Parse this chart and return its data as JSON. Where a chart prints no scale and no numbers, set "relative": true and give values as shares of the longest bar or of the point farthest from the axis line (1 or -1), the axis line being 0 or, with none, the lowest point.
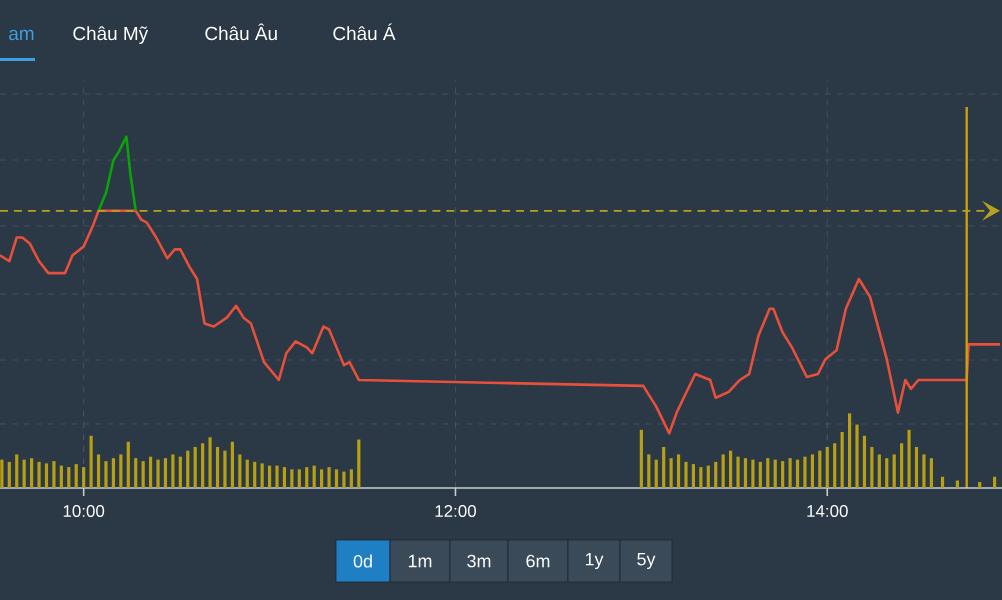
{
  "chart_data": [
    {
      "type": "line",
      "relative": true,
      "xlim": [
        9.55,
        14.94
      ],
      "xticks": [
        10,
        12,
        14
      ],
      "tick_labels": false,
      "grid": true,
      "marker": "none",
      "line_style": "solid",
      "series": [
        {
          "color": "#e8503c",
          "x": [
            9.55,
            9.6,
            9.64,
            9.67,
            9.71,
            9.76,
            9.81,
            9.9,
            9.94,
            10.0,
            10.05,
            10.08,
            10.28,
            10.31,
            10.34,
            10.39,
            10.45,
            10.49,
            10.52,
            10.57,
            10.61,
            10.65,
            10.7,
            10.77,
            10.82,
            10.86,
            10.9,
            10.97,
            11.05,
            11.09,
            11.14,
            11.2,
            11.23,
            11.29,
            11.32,
            11.4,
            11.43,
            11.48,
            12.24,
            13.01,
            13.08,
            13.15,
            13.19,
            13.22,
            13.29,
            13.37,
            13.4,
            13.47,
            13.53,
            13.58,
            13.63,
            13.69,
            13.71,
            13.76,
            13.81,
            13.89,
            13.95,
            13.99,
            14.05,
            14.1,
            14.17,
            14.23,
            14.32,
            14.38,
            14.42,
            14.45,
            14.49,
            14.75,
            14.76,
            14.93
          ],
          "values": [
            0.6,
            0.58,
            0.66,
            0.66,
            0.64,
            0.58,
            0.54,
            0.54,
            0.6,
            0.63,
            0.7,
            0.75,
            0.75,
            0.72,
            0.71,
            0.66,
            0.59,
            0.62,
            0.62,
            0.56,
            0.52,
            0.37,
            0.36,
            0.39,
            0.43,
            0.39,
            0.37,
            0.24,
            0.18,
            0.27,
            0.31,
            0.29,
            0.27,
            0.36,
            0.35,
            0.23,
            0.24,
            0.18,
            0.17,
            0.16,
            0.09,
            0,
            0.07,
            0.11,
            0.2,
            0.18,
            0.12,
            0.14,
            0.18,
            0.2,
            0.33,
            0.42,
            0.42,
            0.34,
            0.29,
            0.19,
            0.2,
            0.25,
            0.28,
            0.42,
            0.52,
            0.46,
            0.25,
            0.07,
            0.18,
            0.15,
            0.18,
            0.18,
            0.3,
            0.3
          ]
        },
        {
          "color": "#0aa30a",
          "x": [
            10.08,
            10.12,
            10.16,
            10.19,
            10.23,
            10.25,
            10.28
          ],
          "values": [
            0.75,
            0.81,
            0.92,
            0.95,
            1,
            0.88,
            0.75
          ]
        }
      ],
      "ref_lines": [
        {
          "axis": "y",
          "value": 0.75,
          "color": "#b8a020",
          "line_style": "dashed"
        },
        {
          "axis": "x",
          "value": 14.75,
          "color": "#c8a010",
          "line_style": "solid"
        }
      ],
      "annotations": [
        "am",
        "Châu Mỹ",
        "Châu Âu",
        "Châu Á"
      ]
    },
    {
      "type": "bar",
      "relative": true,
      "xlim": [
        9.55,
        14.94
      ],
      "xticks": [
        {
          "value": 10,
          "label": "10:00"
        },
        {
          "value": 12,
          "label": "12:00"
        },
        {
          "value": 14,
          "label": "14:00"
        }
      ],
      "tick_labels": "x",
      "grid": "x",
      "color": "#b8a012",
      "x": [
        9.56,
        9.6,
        9.64,
        9.68,
        9.72,
        9.76,
        9.8,
        9.84,
        9.88,
        9.92,
        9.96,
        10.0,
        10.04,
        10.08,
        10.12,
        10.16,
        10.2,
        10.24,
        10.28,
        10.32,
        10.36,
        10.4,
        10.44,
        10.48,
        10.52,
        10.56,
        10.6,
        10.64,
        10.68,
        10.72,
        10.76,
        10.8,
        10.84,
        10.88,
        10.92,
        10.96,
        11.0,
        11.04,
        11.08,
        11.12,
        11.16,
        11.2,
        11.24,
        11.28,
        11.32,
        11.36,
        11.4,
        11.44,
        11.48,
        13.0,
        13.04,
        13.08,
        13.12,
        13.16,
        13.2,
        13.24,
        13.28,
        13.32,
        13.36,
        13.4,
        13.44,
        13.48,
        13.52,
        13.56,
        13.6,
        13.64,
        13.68,
        13.72,
        13.76,
        13.8,
        13.84,
        13.88,
        13.92,
        13.96,
        14.0,
        14.04,
        14.08,
        14.12,
        14.16,
        14.2,
        14.24,
        14.28,
        14.32,
        14.36,
        14.4,
        14.44,
        14.48,
        14.52,
        14.56,
        14.62,
        14.7,
        14.82,
        14.9
      ],
      "values": [
        0.38,
        0.35,
        0.45,
        0.38,
        0.4,
        0.35,
        0.33,
        0.36,
        0.3,
        0.28,
        0.32,
        0.28,
        0.7,
        0.45,
        0.36,
        0.4,
        0.45,
        0.62,
        0.4,
        0.36,
        0.42,
        0.38,
        0.4,
        0.45,
        0.42,
        0.5,
        0.55,
        0.6,
        0.68,
        0.55,
        0.5,
        0.62,
        0.45,
        0.38,
        0.35,
        0.33,
        0.3,
        0.3,
        0.28,
        0.25,
        0.25,
        0.28,
        0.3,
        0.25,
        0.28,
        0.25,
        0.22,
        0.25,
        0.65,
        0.78,
        0.45,
        0.38,
        0.55,
        0.4,
        0.45,
        0.35,
        0.32,
        0.28,
        0.3,
        0.35,
        0.45,
        0.5,
        0.42,
        0.4,
        0.38,
        0.35,
        0.4,
        0.38,
        0.36,
        0.4,
        0.38,
        0.42,
        0.45,
        0.5,
        0.55,
        0.6,
        0.75,
        1,
        0.85,
        0.7,
        0.55,
        0.45,
        0.4,
        0.45,
        0.6,
        0.78,
        0.55,
        0.45,
        0.4,
        0.15,
        0.1,
        0.08,
        0.15
      ],
      "annotations": [
        "0d",
        "1m",
        "3m",
        "6m",
        "1y",
        "5y"
      ]
    }
  ]
}
